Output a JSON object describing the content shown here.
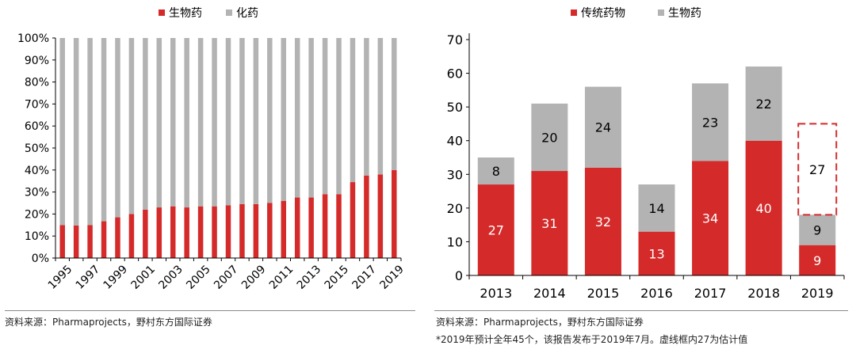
{
  "charts": [
    {
      "type": "stacked-bar-100",
      "legend": [
        "生物药",
        "化药"
      ],
      "colors": {
        "bio": "#d42a2a",
        "chem": "#b3b3b3"
      },
      "categories": [
        "1995",
        "1996",
        "1997",
        "1998",
        "1999",
        "2000",
        "2001",
        "2002",
        "2003",
        "2004",
        "2005",
        "2006",
        "2007",
        "2008",
        "2009",
        "2010",
        "2011",
        "2012",
        "2013",
        "2014",
        "2015",
        "2016",
        "2017",
        "2018",
        "2019"
      ],
      "tick_labels": [
        "1995",
        "1997",
        "1999",
        "2001",
        "2003",
        "2005",
        "2007",
        "2009",
        "2011",
        "2013",
        "2015",
        "2017",
        "2019"
      ],
      "y_ticks": [
        "0%",
        "10%",
        "20%",
        "30%",
        "40%",
        "50%",
        "60%",
        "70%",
        "80%",
        "90%",
        "100%"
      ],
      "series": [
        {
          "name": "生物药",
          "values": [
            15,
            14.8,
            15,
            16.7,
            18.5,
            20,
            22,
            23,
            23.5,
            23,
            23.5,
            23.5,
            24,
            24.5,
            24.5,
            25,
            26,
            27.5,
            27.5,
            29,
            29,
            34.5,
            37.5,
            38,
            40
          ]
        },
        {
          "name": "化药",
          "values": [
            85,
            85.2,
            85,
            83.3,
            81.5,
            80,
            78,
            77,
            76.5,
            77,
            76.5,
            76.5,
            76,
            75.5,
            75.5,
            75,
            74,
            72.5,
            72.5,
            71,
            71,
            65.5,
            62.5,
            62,
            60
          ]
        }
      ],
      "source": "资料来源：Pharmaprojects，野村东方国际证券"
    },
    {
      "type": "stacked-bar",
      "legend": [
        "传统药物",
        "生物药"
      ],
      "colors": {
        "traditional": "#d42a2a",
        "bio": "#b3b3b3"
      },
      "categories": [
        "2013",
        "2014",
        "2015",
        "2016",
        "2017",
        "2018",
        "2019"
      ],
      "y_ticks": [
        "0",
        "10",
        "20",
        "30",
        "40",
        "50",
        "60",
        "70"
      ],
      "ylim": [
        0,
        70
      ],
      "series": [
        {
          "name": "传统药物",
          "values": [
            27,
            31,
            32,
            13,
            34,
            40,
            9
          ]
        },
        {
          "name": "生物药",
          "values": [
            8,
            20,
            24,
            14,
            23,
            22,
            9
          ]
        }
      ],
      "estimate": {
        "category": "2019",
        "value": 27
      },
      "source": "资料来源：Pharmaprojects，野村东方国际证券",
      "note": "*2019年预计全年45个，该报告发布于2019年7月。虚线框内27为估计值"
    }
  ]
}
